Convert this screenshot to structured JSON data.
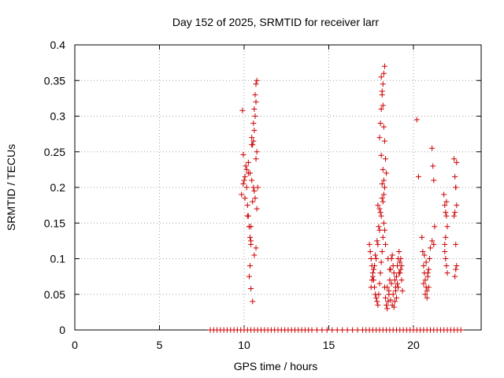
{
  "chart_data": {
    "type": "scatter",
    "title": "Day 152 of 2025, SRMTID for receiver larr",
    "xlabel": "GPS time / hours",
    "ylabel": "SRMTID / TECUs",
    "xlim": [
      0,
      24
    ],
    "ylim": [
      0,
      0.4
    ],
    "xticks": [
      0,
      5,
      10,
      15,
      20
    ],
    "xtick_labels": [
      "0",
      "5",
      "10",
      "15",
      "20"
    ],
    "yticks": [
      0,
      0.05,
      0.1,
      0.15,
      0.2,
      0.25,
      0.3,
      0.35,
      0.4
    ],
    "ytick_labels": [
      "0",
      "0.05",
      "0.1",
      "0.15",
      "0.2",
      "0.25",
      "0.3",
      "0.35",
      "0.4"
    ],
    "grid": true,
    "legend": "none",
    "marker": "+",
    "series": [
      {
        "name": "SRMTID",
        "color": "#cc0000",
        "x": [
          9.9,
          9.95,
          10.0,
          10.05,
          10.1,
          10.15,
          10.2,
          10.25,
          10.3,
          10.35,
          10.4,
          10.45,
          10.5,
          10.55,
          10.6,
          10.65,
          10.7,
          10.75,
          9.85,
          9.95,
          10.05,
          10.15,
          10.25,
          10.35,
          10.45,
          10.55,
          10.65,
          10.75,
          10.3,
          10.4,
          10.5,
          10.6,
          10.7,
          10.2,
          10.3,
          10.4,
          10.45,
          10.55,
          10.6,
          10.65,
          10.7,
          10.35,
          10.5,
          10.6,
          10.7,
          10.75,
          10.8,
          10.25,
          10.4,
          17.4,
          17.45,
          17.5,
          17.55,
          17.6,
          17.65,
          17.7,
          17.75,
          17.8,
          17.85,
          17.9,
          17.95,
          18.0,
          18.05,
          18.1,
          18.15,
          18.2,
          18.25,
          18.3,
          18.35,
          18.4,
          18.45,
          18.5,
          18.55,
          18.6,
          18.65,
          18.7,
          18.75,
          18.8,
          18.85,
          18.9,
          18.95,
          19.0,
          19.05,
          19.1,
          19.15,
          19.2,
          19.25,
          19.3,
          19.35,
          17.5,
          17.6,
          17.7,
          17.8,
          17.9,
          18.0,
          18.1,
          18.2,
          18.3,
          18.4,
          18.5,
          18.6,
          18.7,
          18.8,
          18.9,
          19.0,
          19.1,
          19.2,
          19.3,
          17.55,
          17.65,
          17.75,
          17.85,
          17.95,
          18.05,
          18.15,
          18.25,
          18.35,
          18.45,
          18.55,
          18.65,
          18.75,
          18.85,
          18.95,
          19.05,
          19.15,
          19.25,
          18.0,
          18.05,
          18.1,
          18.15,
          18.2,
          18.25,
          18.3,
          18.1,
          18.15,
          18.2,
          18.25,
          18.3,
          18.1,
          18.2,
          18.15,
          18.25,
          17.9,
          18.0,
          18.3,
          18.35,
          20.2,
          20.3,
          20.5,
          20.55,
          20.6,
          20.65,
          20.7,
          20.75,
          20.8,
          20.85,
          20.9,
          20.95,
          21.0,
          20.6,
          20.7,
          20.8,
          20.9,
          20.65,
          20.75,
          20.85,
          21.1,
          21.15,
          21.2,
          21.25,
          21.1,
          21.2,
          21.8,
          21.85,
          21.9,
          21.95,
          22.0,
          21.85,
          21.9,
          21.95,
          22.0,
          21.85,
          21.9,
          21.95,
          22.4,
          22.45,
          22.5,
          22.55,
          22.4,
          22.45,
          22.5,
          22.55,
          22.45,
          22.5,
          22.55,
          22.5,
          8.0,
          8.2,
          8.4,
          8.6,
          8.8,
          9.0,
          9.2,
          9.4,
          9.6,
          9.8,
          10.0,
          10.2,
          10.4,
          10.6,
          10.8,
          11.0,
          11.2,
          11.4,
          11.6,
          11.8,
          12.0,
          12.2,
          12.4,
          12.6,
          12.8,
          13.0,
          13.2,
          13.4,
          13.6,
          13.8,
          14.0,
          14.3,
          14.6,
          14.9,
          15.2,
          15.5,
          15.8,
          16.1,
          16.4,
          16.7,
          17.0,
          17.2,
          17.4,
          17.6,
          17.8,
          18.0,
          18.2,
          18.4,
          18.6,
          18.8,
          19.0,
          19.2,
          19.4,
          19.6,
          19.8,
          20.0,
          20.2,
          20.4,
          20.6,
          20.8,
          21.0,
          21.2,
          21.4,
          21.6,
          21.8,
          22.0,
          22.2,
          22.4,
          22.6,
          22.8
        ],
        "y": [
          0.308,
          0.246,
          0.21,
          0.185,
          0.23,
          0.2,
          0.175,
          0.16,
          0.145,
          0.13,
          0.12,
          0.27,
          0.26,
          0.29,
          0.31,
          0.33,
          0.345,
          0.35,
          0.19,
          0.205,
          0.215,
          0.225,
          0.235,
          0.22,
          0.21,
          0.2,
          0.185,
          0.17,
          0.075,
          0.058,
          0.04,
          0.105,
          0.115,
          0.16,
          0.145,
          0.125,
          0.26,
          0.265,
          0.28,
          0.3,
          0.32,
          0.09,
          0.18,
          0.195,
          0.24,
          0.25,
          0.2,
          0.22,
          0.145,
          0.12,
          0.11,
          0.1,
          0.09,
          0.08,
          0.07,
          0.06,
          0.05,
          0.045,
          0.04,
          0.035,
          0.05,
          0.065,
          0.08,
          0.095,
          0.11,
          0.13,
          0.15,
          0.06,
          0.045,
          0.035,
          0.03,
          0.04,
          0.055,
          0.07,
          0.085,
          0.1,
          0.105,
          0.09,
          0.08,
          0.07,
          0.06,
          0.075,
          0.09,
          0.1,
          0.11,
          0.095,
          0.085,
          0.07,
          0.055,
          0.06,
          0.075,
          0.09,
          0.1,
          0.12,
          0.14,
          0.16,
          0.18,
          0.2,
          0.22,
          0.1,
          0.085,
          0.065,
          0.05,
          0.04,
          0.045,
          0.06,
          0.08,
          0.09,
          0.07,
          0.085,
          0.105,
          0.125,
          0.145,
          0.165,
          0.185,
          0.21,
          0.24,
          0.06,
          0.05,
          0.042,
          0.035,
          0.032,
          0.055,
          0.065,
          0.08,
          0.1,
          0.27,
          0.29,
          0.31,
          0.33,
          0.345,
          0.36,
          0.37,
          0.355,
          0.335,
          0.315,
          0.285,
          0.265,
          0.245,
          0.225,
          0.205,
          0.19,
          0.175,
          0.17,
          0.14,
          0.12,
          0.295,
          0.215,
          0.13,
          0.11,
          0.09,
          0.08,
          0.07,
          0.06,
          0.055,
          0.075,
          0.085,
          0.1,
          0.115,
          0.065,
          0.05,
          0.045,
          0.06,
          0.105,
          0.095,
          0.08,
          0.255,
          0.23,
          0.21,
          0.145,
          0.125,
          0.12,
          0.19,
          0.175,
          0.165,
          0.16,
          0.145,
          0.12,
          0.1,
          0.09,
          0.08,
          0.11,
          0.13,
          0.18,
          0.24,
          0.215,
          0.2,
          0.175,
          0.16,
          0.165,
          0.12,
          0.09,
          0.075,
          0.085,
          0.235,
          0.2,
          0.0,
          0.0,
          0.0,
          0.0,
          0.0,
          0.0,
          0.0,
          0.0,
          0.0,
          0.0,
          0.0,
          0.0,
          0.0,
          0.0,
          0.0,
          0.0,
          0.0,
          0.0,
          0.0,
          0.0,
          0.0,
          0.0,
          0.0,
          0.0,
          0.0,
          0.0,
          0.0,
          0.0,
          0.0,
          0.0,
          0.0,
          0.0,
          0.0,
          0.0,
          0.0,
          0.0,
          0.0,
          0.0,
          0.0,
          0.0,
          0.0,
          0.0,
          0.0,
          0.0,
          0.0,
          0.0,
          0.0,
          0.0,
          0.0,
          0.0,
          0.0,
          0.0,
          0.0,
          0.0,
          0.0,
          0.0,
          0.0,
          0.0,
          0.0,
          0.0,
          0.0,
          0.0,
          0.0,
          0.0,
          0.0,
          0.0,
          0.0,
          0.0,
          0.0,
          0.0
        ]
      }
    ]
  }
}
